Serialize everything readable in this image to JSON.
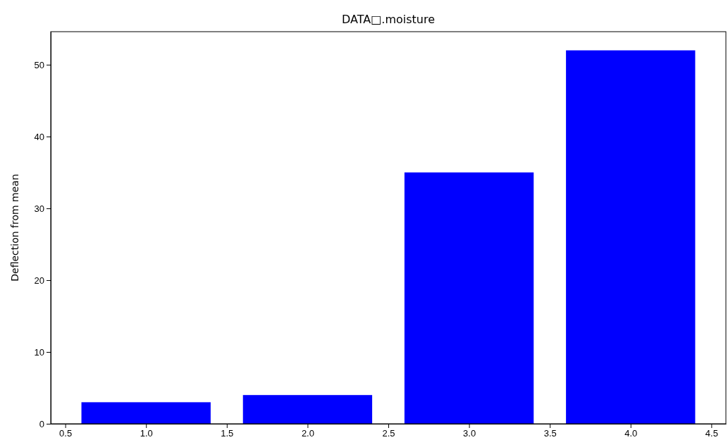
{
  "chart_data": {
    "type": "bar",
    "title": "DATA□.moisture",
    "ylabel": "Deflection from mean",
    "x": [
      1,
      2,
      3,
      4
    ],
    "values": [
      3,
      4,
      35,
      52
    ],
    "color": "#0000ff",
    "xlim": [
      0.41,
      4.59
    ],
    "xticks": [
      {
        "value": 0.5,
        "label": "0.5"
      },
      {
        "value": 1,
        "label": "1.0"
      },
      {
        "value": 1.5,
        "label": "1.5"
      },
      {
        "value": 2,
        "label": "2.0"
      },
      {
        "value": 2.5,
        "label": "2.5"
      },
      {
        "value": 3,
        "label": "3.0"
      },
      {
        "value": 3.5,
        "label": "3.5"
      },
      {
        "value": 4,
        "label": "4.0"
      },
      {
        "value": 4.5,
        "label": "4.5"
      }
    ],
    "ylim": [
      0,
      54.6
    ],
    "yticks": [
      0,
      10,
      20,
      30,
      40,
      50
    ],
    "grid": false
  }
}
